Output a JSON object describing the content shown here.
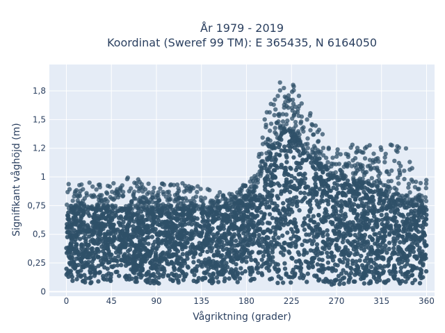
{
  "chart_data": {
    "type": "scatter",
    "title": [
      "År 1979 - 2019",
      "Koordinat (Sweref 99 TM): E 365435, N 6164050"
    ],
    "xlabel": "Vågriktning (grader)",
    "ylabel": "Signifikant våghöjd (m)",
    "xlim": [
      -17,
      368
    ],
    "ylim": [
      -0.04,
      1.98
    ],
    "x_ticks": [
      0,
      45,
      90,
      135,
      180,
      225,
      270,
      315,
      360
    ],
    "x_tick_labels": [
      "0",
      "45",
      "90",
      "135",
      "180",
      "225",
      "270",
      "315",
      "360"
    ],
    "y_ticks": [
      0,
      0.25,
      0.5,
      0.75,
      1,
      1.25,
      1.5,
      1.75
    ],
    "y_tick_labels": [
      "0",
      "0,25",
      "0,5",
      "0,75",
      "1",
      "1,2",
      "1,5",
      "1,8"
    ],
    "grid": true,
    "legend": false,
    "marker_color": "#2f5068",
    "plot_bgcolor": "#e5ecf6",
    "envelope_direction": [
      0,
      20,
      40,
      60,
      80,
      100,
      120,
      140,
      160,
      180,
      190,
      200,
      210,
      220,
      230,
      240,
      250,
      260,
      270,
      280,
      290,
      300,
      310,
      320,
      330,
      340,
      350,
      360
    ],
    "envelope_dense_top": [
      0.7,
      0.72,
      0.73,
      0.72,
      0.72,
      0.72,
      0.72,
      0.72,
      0.74,
      0.8,
      0.9,
      1.15,
      1.3,
      1.45,
      1.35,
      1.2,
      1.12,
      1.05,
      1.0,
      0.98,
      0.95,
      0.95,
      0.9,
      0.85,
      0.8,
      0.78,
      0.75,
      0.72
    ],
    "envelope_outer_max": [
      0.95,
      0.98,
      0.92,
      1.02,
      0.95,
      0.95,
      0.95,
      0.9,
      0.85,
      0.95,
      1.05,
      1.6,
      1.92,
      1.85,
      1.8,
      1.65,
      1.45,
      1.35,
      1.3,
      1.28,
      1.3,
      1.3,
      1.25,
      1.3,
      1.4,
      1.25,
      1.1,
      1.0
    ],
    "envelope_min": [
      0.07,
      0.07,
      0.07,
      0.07,
      0.07,
      0.07,
      0.07,
      0.07,
      0.07,
      0.08,
      0.08,
      0.08,
      0.07,
      0.07,
      0.06,
      0.06,
      0.06,
      0.06,
      0.06,
      0.06,
      0.06,
      0.06,
      0.06,
      0.06,
      0.07,
      0.07,
      0.07,
      0.07
    ]
  }
}
